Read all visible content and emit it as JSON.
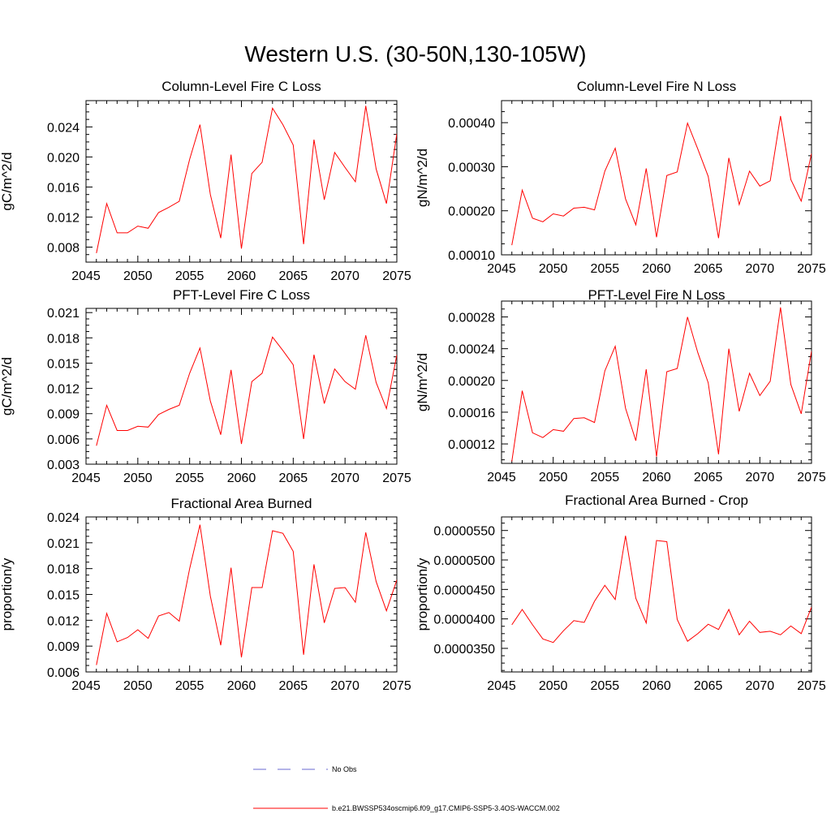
{
  "figure_title": "Western U.S. (30-50N,130-105W)",
  "colors": {
    "series": "#ff0000",
    "no_obs": "#6a6ad0",
    "axis": "#000000"
  },
  "legend": {
    "no_obs_label": "No Obs",
    "series_label": "b.e21.BWSSP534oscmip6.f09_g17.CMIP6-SSP5-3.4OS-WACCM.002"
  },
  "chart_data": [
    {
      "type": "line",
      "title": "Column-Level Fire C Loss",
      "ylabel": "gC/m^2/d",
      "xlim": [
        2045,
        2075
      ],
      "xticks": [
        2045,
        2050,
        2055,
        2060,
        2065,
        2070,
        2075
      ],
      "xtick_labels": [
        "2045",
        "2050",
        "2055",
        "2060",
        "2065",
        "2070",
        "2075"
      ],
      "ylim": [
        0.006,
        0.0275
      ],
      "yticks": [
        0.008,
        0.012,
        0.016,
        0.02,
        0.024
      ],
      "ytick_labels": [
        "0.008",
        "0.012",
        "0.016",
        "0.020",
        "0.024"
      ],
      "x": [
        2046,
        2047,
        2048,
        2049,
        2050,
        2051,
        2052,
        2053,
        2054,
        2055,
        2056,
        2057,
        2058,
        2059,
        2060,
        2061,
        2062,
        2063,
        2064,
        2065,
        2066,
        2067,
        2068,
        2069,
        2070,
        2071,
        2072,
        2073,
        2074,
        2075
      ],
      "series": [
        {
          "name": "b.e21.BWSSP534oscmip6.f09_g17.CMIP6-SSP5-3.4OS-WACCM.002",
          "values": [
            0.0072,
            0.0138,
            0.0099,
            0.0099,
            0.0108,
            0.0105,
            0.0126,
            0.0133,
            0.0141,
            0.0197,
            0.0243,
            0.015,
            0.0092,
            0.0203,
            0.0078,
            0.0178,
            0.0193,
            0.0265,
            0.0243,
            0.0216,
            0.0084,
            0.0223,
            0.0143,
            0.0206,
            0.0186,
            0.0167,
            0.0268,
            0.0184,
            0.0138,
            0.0231
          ]
        }
      ]
    },
    {
      "type": "line",
      "title": "Column-Level Fire N Loss",
      "ylabel": "gN/m^2/d",
      "xlim": [
        2045,
        2075
      ],
      "xticks": [
        2045,
        2050,
        2055,
        2060,
        2065,
        2070,
        2075
      ],
      "xtick_labels": [
        "2045",
        "2050",
        "2055",
        "2060",
        "2065",
        "2070",
        "2075"
      ],
      "ylim": [
        0.0001,
        0.00045
      ],
      "yticks": [
        0.0001,
        0.0002,
        0.0003,
        0.0004
      ],
      "ytick_labels": [
        "0.00010",
        "0.00020",
        "0.00030",
        "0.00040"
      ],
      "x": [
        2046,
        2047,
        2048,
        2049,
        2050,
        2051,
        2052,
        2053,
        2054,
        2055,
        2056,
        2057,
        2058,
        2059,
        2060,
        2061,
        2062,
        2063,
        2064,
        2065,
        2066,
        2067,
        2068,
        2069,
        2070,
        2071,
        2072,
        2073,
        2074,
        2075
      ],
      "series": [
        {
          "name": "b.e21.BWSSP534oscmip6.f09_g17.CMIP6-SSP5-3.4OS-WACCM.002",
          "values": [
            0.000122,
            0.000247,
            0.000183,
            0.000175,
            0.000193,
            0.000188,
            0.000206,
            0.000208,
            0.000202,
            0.00029,
            0.000342,
            0.000227,
            0.000168,
            0.000296,
            0.00014,
            0.00028,
            0.000288,
            0.000399,
            0.00034,
            0.000278,
            0.000138,
            0.00032,
            0.000214,
            0.00029,
            0.000256,
            0.000268,
            0.000415,
            0.000271,
            0.000222,
            0.00033
          ]
        }
      ]
    },
    {
      "type": "line",
      "title": "PFT-Level Fire C Loss",
      "ylabel": "gC/m^2/d",
      "xlim": [
        2045,
        2075
      ],
      "xticks": [
        2045,
        2050,
        2055,
        2060,
        2065,
        2070,
        2075
      ],
      "xtick_labels": [
        "2045",
        "2050",
        "2055",
        "2060",
        "2065",
        "2070",
        "2075"
      ],
      "ylim": [
        0.003,
        0.0215
      ],
      "yticks": [
        0.003,
        0.006,
        0.009,
        0.012,
        0.015,
        0.018,
        0.021
      ],
      "ytick_labels": [
        "0.003",
        "0.006",
        "0.009",
        "0.012",
        "0.015",
        "0.018",
        "0.021"
      ],
      "x": [
        2046,
        2047,
        2048,
        2049,
        2050,
        2051,
        2052,
        2053,
        2054,
        2055,
        2056,
        2057,
        2058,
        2059,
        2060,
        2061,
        2062,
        2063,
        2064,
        2065,
        2066,
        2067,
        2068,
        2069,
        2070,
        2071,
        2072,
        2073,
        2074,
        2075
      ],
      "series": [
        {
          "name": "b.e21.BWSSP534oscmip6.f09_g17.CMIP6-SSP5-3.4OS-WACCM.002",
          "values": [
            0.0052,
            0.01,
            0.007,
            0.007,
            0.0075,
            0.0074,
            0.0089,
            0.0095,
            0.01,
            0.0138,
            0.0168,
            0.0105,
            0.0065,
            0.0142,
            0.0054,
            0.0128,
            0.0138,
            0.0181,
            0.0165,
            0.0148,
            0.006,
            0.016,
            0.0102,
            0.0143,
            0.0128,
            0.0119,
            0.0183,
            0.0127,
            0.0096,
            0.016
          ]
        }
      ]
    },
    {
      "type": "line",
      "title": "PFT-Level Fire N Loss",
      "ylabel": "gN/m^2/d",
      "xlim": [
        2045,
        2075
      ],
      "xticks": [
        2045,
        2050,
        2055,
        2060,
        2065,
        2070,
        2075
      ],
      "xtick_labels": [
        "2045",
        "2050",
        "2055",
        "2060",
        "2065",
        "2070",
        "2075"
      ],
      "ylim": [
        9.55e-05,
        0.0003
      ],
      "yticks": [
        0.00012,
        0.00016,
        0.0002,
        0.00024,
        0.00028
      ],
      "ytick_labels": [
        "0.00012",
        "0.00016",
        "0.00020",
        "0.00024",
        "0.00028"
      ],
      "x": [
        2046,
        2047,
        2048,
        2049,
        2050,
        2051,
        2052,
        2053,
        2054,
        2055,
        2056,
        2057,
        2058,
        2059,
        2060,
        2061,
        2062,
        2063,
        2064,
        2065,
        2066,
        2067,
        2068,
        2069,
        2070,
        2071,
        2072,
        2073,
        2074,
        2075
      ],
      "series": [
        {
          "name": "b.e21.BWSSP534oscmip6.f09_g17.CMIP6-SSP5-3.4OS-WACCM.002",
          "values": [
            9.8e-05,
            0.000187,
            0.000134,
            0.000128,
            0.000138,
            0.000136,
            0.000152,
            0.000153,
            0.000147,
            0.000212,
            0.000243,
            0.000165,
            0.000124,
            0.000214,
            0.000104,
            0.000211,
            0.000215,
            0.00028,
            0.000235,
            0.000197,
            0.000107,
            0.00024,
            0.000161,
            0.000209,
            0.000181,
            0.000199,
            0.000292,
            0.000195,
            0.000158,
            0.000237
          ]
        }
      ]
    },
    {
      "type": "line",
      "title": "Fractional Area Burned",
      "ylabel": "proportion/y",
      "xlim": [
        2045,
        2075
      ],
      "xticks": [
        2045,
        2050,
        2055,
        2060,
        2065,
        2070,
        2075
      ],
      "xtick_labels": [
        "2045",
        "2050",
        "2055",
        "2060",
        "2065",
        "2070",
        "2075"
      ],
      "ylim": [
        0.006,
        0.024
      ],
      "yticks": [
        0.006,
        0.009,
        0.012,
        0.015,
        0.018,
        0.021,
        0.024
      ],
      "ytick_labels": [
        "0.006",
        "0.009",
        "0.012",
        "0.015",
        "0.018",
        "0.021",
        "0.024"
      ],
      "x": [
        2046,
        2047,
        2048,
        2049,
        2050,
        2051,
        2052,
        2053,
        2054,
        2055,
        2056,
        2057,
        2058,
        2059,
        2060,
        2061,
        2062,
        2063,
        2064,
        2065,
        2066,
        2067,
        2068,
        2069,
        2070,
        2071,
        2072,
        2073,
        2074,
        2075
      ],
      "series": [
        {
          "name": "b.e21.BWSSP534oscmip6.f09_g17.CMIP6-SSP5-3.4OS-WACCM.002",
          "values": [
            0.0068,
            0.0128,
            0.0095,
            0.01,
            0.0109,
            0.0099,
            0.0125,
            0.0129,
            0.0119,
            0.018,
            0.0231,
            0.0148,
            0.0091,
            0.0181,
            0.0077,
            0.0158,
            0.0158,
            0.0224,
            0.0221,
            0.02,
            0.008,
            0.0185,
            0.0117,
            0.0157,
            0.0158,
            0.0141,
            0.0222,
            0.0165,
            0.0131,
            0.0167
          ]
        }
      ]
    },
    {
      "type": "line",
      "title": "Fractional Area Burned - Crop",
      "ylabel": "proportion/y",
      "xlim": [
        2045,
        2075
      ],
      "xticks": [
        2045,
        2050,
        2055,
        2060,
        2065,
        2070,
        2075
      ],
      "xtick_labels": [
        "2045",
        "2050",
        "2055",
        "2060",
        "2065",
        "2070",
        "2075"
      ],
      "ylim": [
        3.1e-05,
        5.73e-05
      ],
      "yticks": [
        3.5e-05,
        4e-05,
        4.5e-05,
        5e-05,
        5.5e-05
      ],
      "ytick_labels": [
        "0.0000350",
        "0.0000400",
        "0.0000450",
        "0.0000500",
        "0.0000550"
      ],
      "x": [
        2046,
        2047,
        2048,
        2049,
        2050,
        2051,
        2052,
        2053,
        2054,
        2055,
        2056,
        2057,
        2058,
        2059,
        2060,
        2061,
        2062,
        2063,
        2064,
        2065,
        2066,
        2067,
        2068,
        2069,
        2070,
        2071,
        2072,
        2073,
        2074,
        2075
      ],
      "series": [
        {
          "name": "b.e21.BWSSP534oscmip6.f09_g17.CMIP6-SSP5-3.4OS-WACCM.002",
          "values": [
            3.9e-05,
            4.16e-05,
            3.9e-05,
            3.66e-05,
            3.6e-05,
            3.8e-05,
            3.97e-05,
            3.94e-05,
            4.3e-05,
            4.57e-05,
            4.33e-05,
            5.41e-05,
            4.35e-05,
            3.93e-05,
            5.33e-05,
            5.31e-05,
            3.99e-05,
            3.62e-05,
            3.75e-05,
            3.91e-05,
            3.82e-05,
            4.16e-05,
            3.73e-05,
            3.96e-05,
            3.77e-05,
            3.79e-05,
            3.73e-05,
            3.88e-05,
            3.75e-05,
            4.2e-05
          ]
        }
      ]
    }
  ]
}
